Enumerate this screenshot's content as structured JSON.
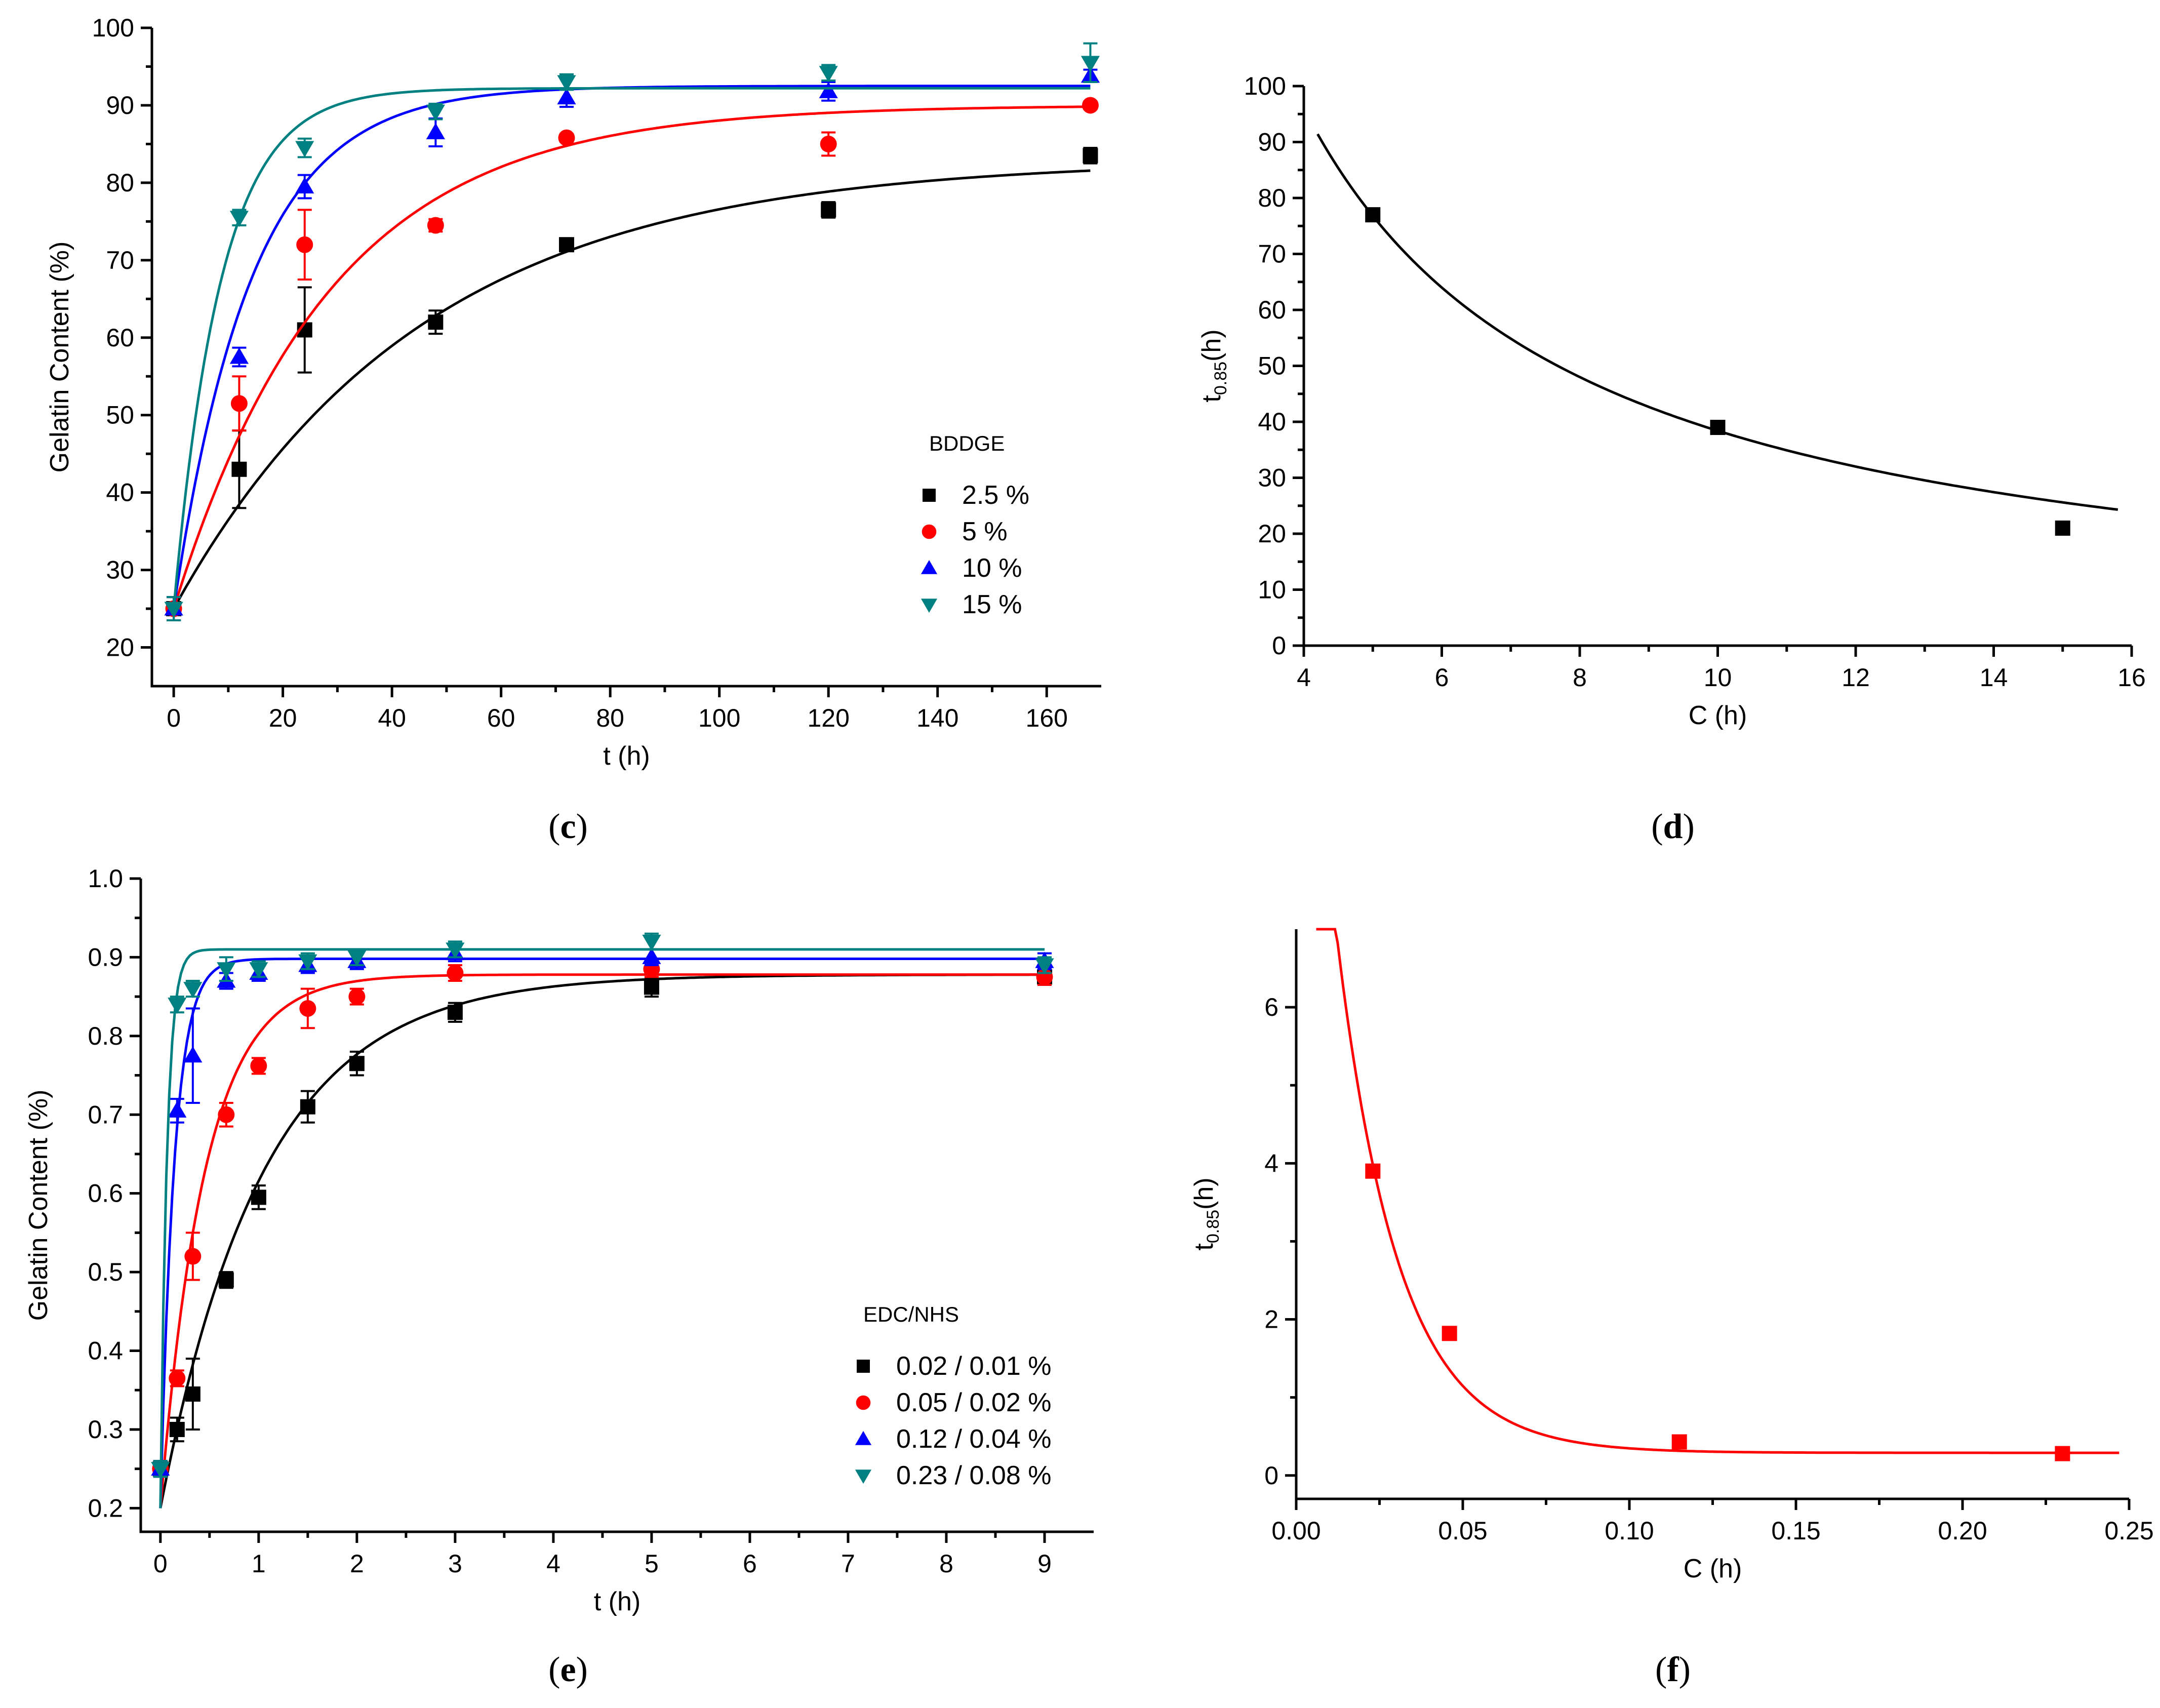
{
  "panel_labels": {
    "c": "c",
    "d": "d",
    "e": "e",
    "f": "f"
  },
  "chart_data": [
    {
      "panel": "c",
      "type": "scatter",
      "xlabel": "t (h)",
      "ylabel": "Gelatin Content (%)",
      "xlim": [
        -4,
        170
      ],
      "ylim": [
        15,
        100
      ],
      "xticks": [
        0,
        20,
        40,
        60,
        80,
        100,
        120,
        140,
        160
      ],
      "yticks": [
        20,
        30,
        40,
        50,
        60,
        70,
        80,
        90,
        100
      ],
      "legend_title": "BDDGE",
      "legend_position": "right-middle",
      "x": [
        0,
        12,
        24,
        48,
        72,
        120,
        168
      ],
      "series": [
        {
          "name": "2.5 %",
          "color": "#000000",
          "marker": "square",
          "values": [
            25,
            43,
            61,
            62,
            72,
            76.5,
            83.5
          ],
          "errors": [
            1.5,
            5,
            5.5,
            1.5,
            0.5,
            1,
            1
          ],
          "fit": {
            "inf": 83,
            "k": 0.022
          }
        },
        {
          "name": "5 %",
          "color": "#ff0000",
          "marker": "circle",
          "values": [
            25,
            51.5,
            72,
            74.5,
            85.8,
            85,
            90
          ],
          "errors": [
            1.5,
            3.5,
            4.5,
            0.8,
            0.5,
            1.5,
            0.5
          ],
          "fit": {
            "inf": 90,
            "k": 0.035
          }
        },
        {
          "name": "10 %",
          "color": "#0000ff",
          "marker": "triangle-up",
          "values": [
            25,
            57.5,
            79.5,
            86.5,
            91,
            91.8,
            93.8
          ],
          "errors": [
            1.5,
            1.2,
            1.5,
            1.8,
            1.2,
            1.2,
            0.8
          ],
          "fit": {
            "inf": 92.5,
            "k": 0.07
          }
        },
        {
          "name": "15 %",
          "color": "#008080",
          "marker": "triangle-down",
          "values": [
            25,
            75.5,
            84.5,
            89.2,
            93,
            94.2,
            95.5
          ],
          "errors": [
            1.5,
            1,
            1.2,
            1,
            1,
            1,
            2.5
          ],
          "fit": {
            "inf": 92.2,
            "k": 0.115
          }
        }
      ]
    },
    {
      "panel": "d",
      "type": "scatter",
      "xlabel": "C (h)",
      "ylabel": "t0.85(h)",
      "ylabel_main": "t",
      "ylabel_sub": "0.85",
      "ylabel_suffix": "(h)",
      "xlim": [
        4,
        16
      ],
      "ylim": [
        0,
        100
      ],
      "xticks": [
        4,
        6,
        8,
        10,
        12,
        14,
        16
      ],
      "yticks": [
        0,
        10,
        20,
        30,
        40,
        50,
        60,
        70,
        80,
        90,
        100
      ],
      "series": [
        {
          "color": "#000000",
          "marker": "square",
          "x": [
            5,
            10,
            15
          ],
          "values": [
            77,
            39,
            21
          ],
          "fit": {
            "type": "power",
            "a": 384,
            "b": 1.0,
            "xrange": [
              4.2,
              15.8
            ]
          }
        }
      ]
    },
    {
      "panel": "e",
      "type": "scatter",
      "xlabel": "t (h)",
      "ylabel": "Gelatin Content (%)",
      "xlim": [
        -0.2,
        9.5
      ],
      "ylim": [
        0.17,
        1.0
      ],
      "xticks": [
        0,
        1,
        2,
        3,
        4,
        5,
        6,
        7,
        8,
        9
      ],
      "yticks": [
        0.2,
        0.3,
        0.4,
        0.5,
        0.6,
        0.7,
        0.8,
        0.9,
        1.0
      ],
      "legend_title": "EDC/NHS",
      "legend_position": "bottom-right",
      "series": [
        {
          "name": "0.02 / 0.01 %",
          "color": "#000000",
          "marker": "square",
          "x": [
            0,
            0.17,
            0.33,
            0.67,
            1,
            1.5,
            2,
            3,
            5,
            9
          ],
          "values": [
            0.25,
            0.3,
            0.345,
            0.49,
            0.595,
            0.71,
            0.765,
            0.83,
            0.862,
            0.875
          ],
          "errors": [
            0.01,
            0.015,
            0.045,
            0.01,
            0.015,
            0.02,
            0.015,
            0.012,
            0.012,
            0.01
          ],
          "fit": {
            "inf": 0.878,
            "k": 0.95
          }
        },
        {
          "name": "0.05 / 0.02 %",
          "color": "#ff0000",
          "marker": "circle",
          "x": [
            0,
            0.17,
            0.33,
            0.67,
            1,
            1.5,
            2,
            3,
            5,
            9
          ],
          "values": [
            0.25,
            0.365,
            0.52,
            0.7,
            0.762,
            0.835,
            0.85,
            0.88,
            0.885,
            0.875
          ],
          "errors": [
            0.01,
            0.01,
            0.03,
            0.015,
            0.01,
            0.025,
            0.01,
            0.01,
            0.01,
            0.01
          ],
          "fit": {
            "inf": 0.878,
            "k": 2.2
          }
        },
        {
          "name": "0.12 / 0.04 %",
          "color": "#0000ff",
          "marker": "triangle-up",
          "x": [
            0,
            0.17,
            0.33,
            0.67,
            1,
            1.5,
            2,
            3,
            5,
            9
          ],
          "values": [
            0.25,
            0.705,
            0.775,
            0.87,
            0.88,
            0.89,
            0.895,
            0.905,
            0.9,
            0.895
          ],
          "errors": [
            0.01,
            0.015,
            0.06,
            0.01,
            0.01,
            0.01,
            0.01,
            0.01,
            0.01,
            0.01
          ],
          "fit": {
            "inf": 0.898,
            "k": 7.0
          }
        },
        {
          "name": "0.23 / 0.08 %",
          "color": "#008080",
          "marker": "triangle-down",
          "x": [
            0,
            0.17,
            0.33,
            0.67,
            1,
            1.5,
            2,
            3,
            5,
            9
          ],
          "values": [
            0.25,
            0.84,
            0.86,
            0.885,
            0.885,
            0.895,
            0.9,
            0.91,
            0.92,
            0.89
          ],
          "errors": [
            0.01,
            0.01,
            0.01,
            0.015,
            0.01,
            0.01,
            0.01,
            0.01,
            0.01,
            0.01
          ],
          "fit": {
            "inf": 0.91,
            "k": 15.0
          }
        }
      ]
    },
    {
      "panel": "f",
      "type": "scatter",
      "xlabel": "C (h)",
      "ylabel": "t0.85(h)",
      "ylabel_main": "t",
      "ylabel_sub": "0.85",
      "ylabel_suffix": "(h)",
      "xlim": [
        0,
        0.25
      ],
      "ylim": [
        -0.3,
        7.0
      ],
      "xticks": [
        0.0,
        0.05,
        0.1,
        0.15,
        0.2,
        0.25
      ],
      "xtick_labels": [
        "0.00",
        "0.05",
        "0.10",
        "0.15",
        "0.20",
        "0.25"
      ],
      "yticks": [
        0,
        2,
        4,
        6
      ],
      "series": [
        {
          "color": "#ff0000",
          "marker": "square",
          "x": [
            0.023,
            0.046,
            0.115,
            0.23
          ],
          "values": [
            3.9,
            1.82,
            0.43,
            0.28
          ],
          "fit": {
            "type": "expdecay",
            "y0": 0.29,
            "A": 12.8,
            "t": 0.0185,
            "xrange": [
              0.006,
              0.247
            ]
          }
        }
      ]
    }
  ]
}
